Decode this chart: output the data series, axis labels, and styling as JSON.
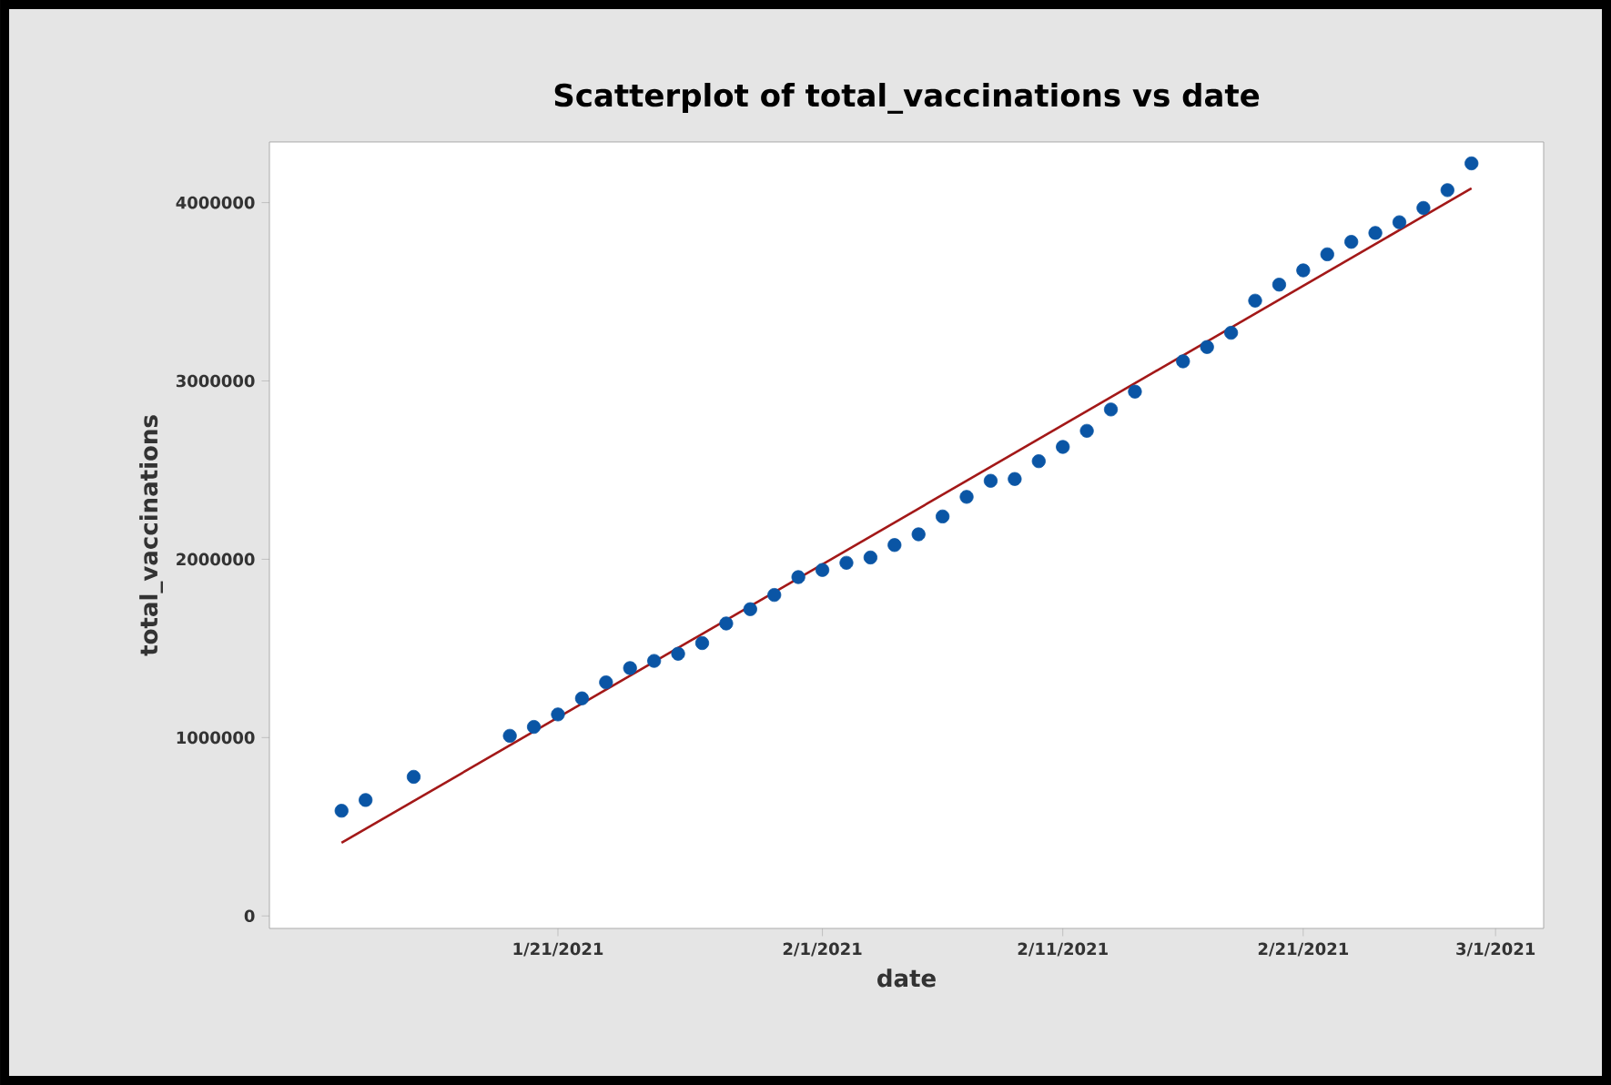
{
  "chart_data": {
    "type": "scatter",
    "title": "Scatterplot of total_vaccinations vs date",
    "xlabel": "date",
    "ylabel": "total_vaccinations",
    "xlim": [
      "2021-01-09",
      "2021-03-03"
    ],
    "ylim": [
      -70000,
      4340000
    ],
    "xticks": [
      {
        "value": "2021-01-21",
        "label": "1/21/2021"
      },
      {
        "value": "2021-02-01",
        "label": "2/1/2021"
      },
      {
        "value": "2021-02-11",
        "label": "2/11/2021"
      },
      {
        "value": "2021-02-21",
        "label": "2/21/2021"
      },
      {
        "value": "2021-03-01",
        "label": "3/1/2021"
      }
    ],
    "yticks": [
      0,
      1000000,
      2000000,
      3000000,
      4000000
    ],
    "grid": false,
    "series": [
      {
        "color": "#0a55a5",
        "marker": "circle",
        "x": [
          "2021-01-12",
          "2021-01-13",
          "2021-01-15",
          "2021-01-19",
          "2021-01-20",
          "2021-01-21",
          "2021-01-22",
          "2021-01-23",
          "2021-01-24",
          "2021-01-25",
          "2021-01-26",
          "2021-01-27",
          "2021-01-28",
          "2021-01-29",
          "2021-01-30",
          "2021-01-31",
          "2021-02-01",
          "2021-02-02",
          "2021-02-03",
          "2021-02-04",
          "2021-02-05",
          "2021-02-06",
          "2021-02-07",
          "2021-02-08",
          "2021-02-09",
          "2021-02-10",
          "2021-02-11",
          "2021-02-12",
          "2021-02-13",
          "2021-02-14",
          "2021-02-16",
          "2021-02-17",
          "2021-02-18",
          "2021-02-19",
          "2021-02-20",
          "2021-02-21",
          "2021-02-22",
          "2021-02-23",
          "2021-02-24",
          "2021-02-25",
          "2021-02-26",
          "2021-02-27",
          "2021-02-28"
        ],
        "values": [
          590000,
          650000,
          780000,
          1010000,
          1060000,
          1130000,
          1220000,
          1310000,
          1390000,
          1430000,
          1470000,
          1530000,
          1640000,
          1720000,
          1800000,
          1900000,
          1940000,
          1980000,
          2010000,
          2080000,
          2140000,
          2240000,
          2350000,
          2440000,
          2450000,
          2550000,
          2630000,
          2720000,
          2840000,
          2940000,
          3110000,
          3190000,
          3270000,
          3450000,
          3540000,
          3620000,
          3710000,
          3780000,
          3830000,
          3890000,
          3970000,
          4070000,
          4220000
        ]
      },
      {
        "type": "line",
        "color": "#a31818",
        "marker": "none",
        "line_style": "solid",
        "x": [
          "2021-01-12",
          "2021-02-28"
        ],
        "values": [
          410000,
          4080000
        ]
      }
    ]
  }
}
